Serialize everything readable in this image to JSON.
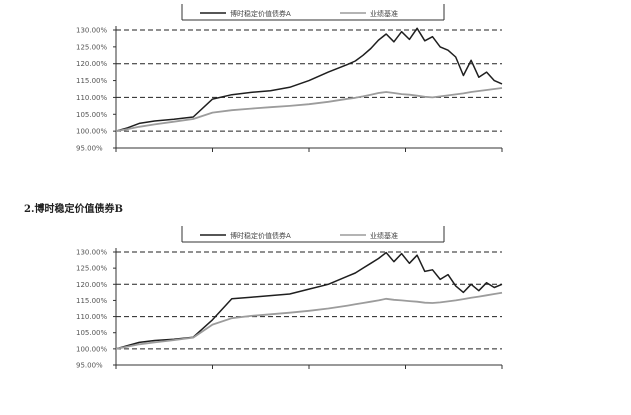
{
  "caption": "2.博时稳定价值债券B",
  "colors": {
    "fund": "#1f1f1f",
    "benchmark": "#9c9c9c",
    "grid": "#222222"
  },
  "chart_data": [
    {
      "type": "line",
      "title": "",
      "legend_position": "top-center",
      "legend": [
        "博时稳定价值债券A",
        "业绩基准"
      ],
      "grid": "dashed horizontal",
      "ylabel": "",
      "xlabel": "",
      "ylim": [
        95,
        130
      ],
      "y_ticks": [
        "95.00%",
        "100.00%",
        "105.00%",
        "110.00%",
        "115.00%",
        "120.00%",
        "125.00%",
        "130.00%"
      ],
      "x": [
        0,
        0.03,
        0.06,
        0.1,
        0.15,
        0.2,
        0.25,
        0.3,
        0.35,
        0.4,
        0.45,
        0.5,
        0.55,
        0.6,
        0.62,
        0.64,
        0.66,
        0.68,
        0.7,
        0.72,
        0.74,
        0.76,
        0.78,
        0.8,
        0.82,
        0.84,
        0.86,
        0.88,
        0.9,
        0.92,
        0.94,
        0.96,
        0.98,
        1.0
      ],
      "series": [
        {
          "name": "博时稳定价值债券A",
          "values": [
            100.0,
            101.0,
            102.3,
            103.0,
            103.5,
            104.2,
            109.5,
            110.8,
            111.5,
            112.0,
            113.0,
            115.0,
            117.5,
            119.8,
            120.8,
            122.5,
            124.5,
            127.0,
            128.8,
            126.5,
            129.5,
            127.2,
            130.5,
            126.8,
            128.0,
            125.0,
            124.0,
            122.0,
            116.5,
            121.0,
            116.0,
            117.5,
            115.0,
            114.0
          ]
        },
        {
          "name": "业绩基准",
          "values": [
            100.0,
            100.6,
            101.3,
            102.0,
            102.8,
            103.6,
            105.5,
            106.2,
            106.7,
            107.1,
            107.5,
            108.0,
            108.7,
            109.6,
            109.9,
            110.3,
            110.8,
            111.3,
            111.6,
            111.3,
            111.0,
            110.8,
            110.5,
            110.2,
            110.0,
            110.3,
            110.6,
            110.9,
            111.2,
            111.6,
            111.9,
            112.2,
            112.5,
            112.8
          ]
        }
      ]
    },
    {
      "type": "line",
      "title": "",
      "legend_position": "top-center",
      "legend": [
        "博时稳定价值债券A",
        "业绩基准"
      ],
      "grid": "dashed horizontal",
      "ylabel": "",
      "xlabel": "",
      "ylim": [
        95,
        130
      ],
      "y_ticks": [
        "95.00%",
        "100.00%",
        "105.00%",
        "110.00%",
        "115.00%",
        "120.00%",
        "125.00%",
        "130.00%"
      ],
      "x": [
        0,
        0.03,
        0.06,
        0.1,
        0.15,
        0.2,
        0.25,
        0.3,
        0.35,
        0.4,
        0.45,
        0.5,
        0.55,
        0.6,
        0.62,
        0.64,
        0.66,
        0.68,
        0.7,
        0.72,
        0.74,
        0.76,
        0.78,
        0.8,
        0.82,
        0.84,
        0.86,
        0.88,
        0.9,
        0.92,
        0.94,
        0.96,
        0.98,
        1.0
      ],
      "series": [
        {
          "name": "博时稳定价值债券A",
          "values": [
            100.0,
            101.0,
            102.0,
            102.6,
            103.0,
            103.6,
            109.0,
            115.5,
            116.0,
            116.5,
            117.0,
            118.5,
            120.0,
            122.5,
            123.5,
            125.0,
            126.5,
            128.0,
            129.8,
            127.0,
            129.5,
            126.5,
            129.0,
            124.0,
            124.5,
            121.5,
            123.0,
            119.5,
            117.5,
            120.0,
            118.0,
            120.5,
            119.0,
            120.0
          ]
        },
        {
          "name": "业绩基准",
          "values": [
            100.0,
            100.7,
            101.4,
            102.0,
            102.7,
            103.5,
            107.5,
            109.5,
            110.2,
            110.7,
            111.2,
            111.8,
            112.5,
            113.4,
            113.8,
            114.2,
            114.6,
            115.0,
            115.5,
            115.2,
            115.0,
            114.8,
            114.6,
            114.3,
            114.2,
            114.4,
            114.7,
            115.0,
            115.4,
            115.8,
            116.2,
            116.6,
            117.0,
            117.4
          ]
        }
      ]
    }
  ]
}
